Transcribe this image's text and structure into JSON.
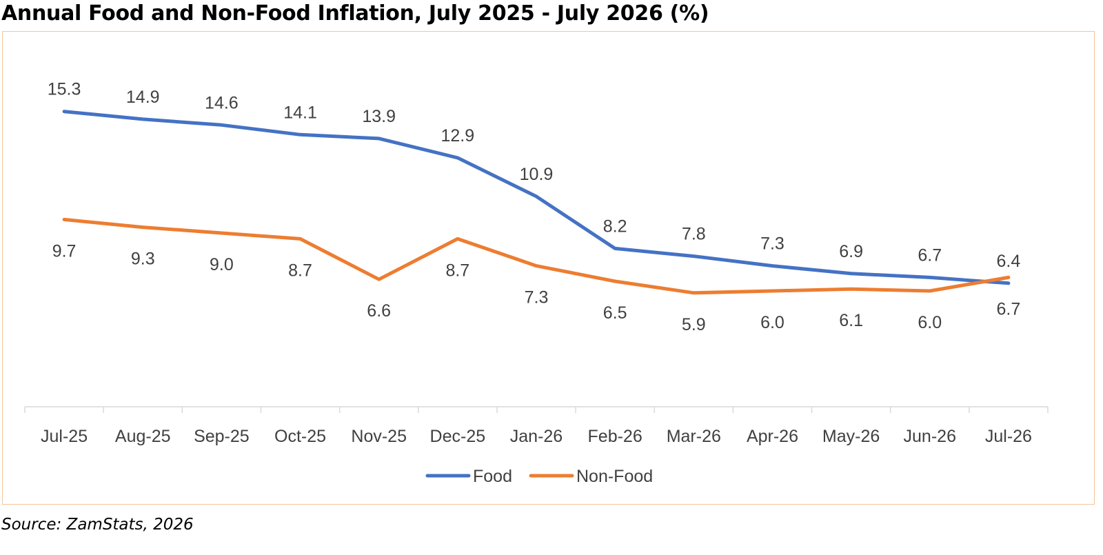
{
  "title": "Annual Food and Non-Food Inflation, July 2025 - July 2026 (%)",
  "source": "Source: ZamStats, 2026",
  "chart_data": {
    "type": "line",
    "title": "Annual Food and Non-Food Inflation, July 2025 - July 2026 (%)",
    "categories": [
      "Jul-25",
      "Aug-25",
      "Sep-25",
      "Oct-25",
      "Nov-25",
      "Dec-25",
      "Jan-26",
      "Feb-26",
      "Mar-26",
      "Apr-26",
      "May-26",
      "Jun-26",
      "Jul-26"
    ],
    "series": [
      {
        "name": "Food",
        "color": "#4472c4",
        "values": [
          15.3,
          14.9,
          14.6,
          14.1,
          13.9,
          12.9,
          10.9,
          8.2,
          7.8,
          7.3,
          6.9,
          6.7,
          6.4
        ],
        "labels": [
          "15.3",
          "14.9",
          "14.6",
          "14.1",
          "13.9",
          "12.9",
          "10.9",
          "8.2",
          "7.8",
          "7.3",
          "6.9",
          "6.7",
          "6.4"
        ],
        "label_position": "above"
      },
      {
        "name": "Non-Food",
        "color": "#ed7d31",
        "values": [
          9.7,
          9.3,
          9.0,
          8.7,
          6.6,
          8.7,
          7.3,
          6.5,
          5.9,
          6.0,
          6.1,
          6.0,
          6.7
        ],
        "labels": [
          "9.7",
          "9.3",
          "9.0",
          "8.7",
          "6.6",
          "8.7",
          "7.3",
          "6.5",
          "5.9",
          "6.0",
          "6.1",
          "6.0",
          "6.7"
        ],
        "label_position": "below"
      }
    ],
    "ylim": [
      0,
      20
    ],
    "y_axis_visible": false,
    "grid": false,
    "legend_position": "bottom"
  }
}
